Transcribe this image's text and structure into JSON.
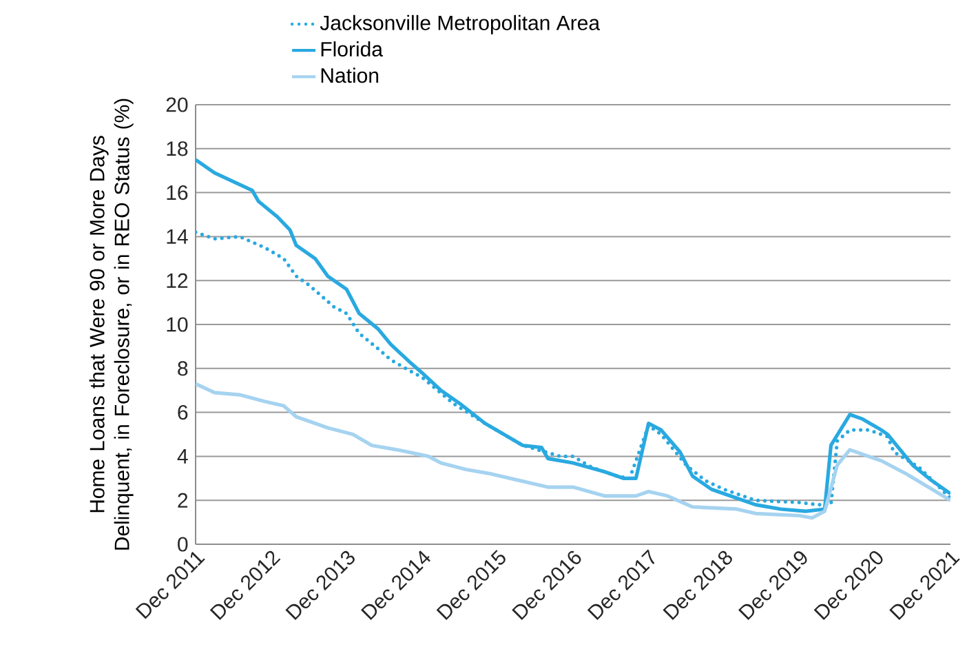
{
  "chart_data": {
    "type": "line",
    "ylabel": "Home Loans that Were 90 or More Days Delinquent, in Foreclosure, or in REO Status (%)",
    "series": [
      {
        "name": "Jacksonville Metropolitan Area",
        "color": "#29a9e0",
        "line_style": "dotted",
        "x": [
          "2011-12",
          "2012-03",
          "2012-07",
          "2012-11",
          "2013-02",
          "2013-04",
          "2013-06",
          "2013-10",
          "2013-12",
          "2014-02",
          "2014-05",
          "2014-07",
          "2014-10",
          "2014-12",
          "2015-05",
          "2015-10",
          "2016-04",
          "2016-10",
          "2016-12",
          "2017-03",
          "2017-07",
          "2017-09",
          "2017-12",
          "2018-02",
          "2018-06",
          "2018-09",
          "2018-12",
          "2019-05",
          "2019-12",
          "2020-03",
          "2020-05",
          "2020-06",
          "2020-08",
          "2020-11",
          "2021-02",
          "2021-03",
          "2021-07",
          "2021-12"
        ],
        "values": [
          14.2,
          13.9,
          14.0,
          13.5,
          13.0,
          12.2,
          11.8,
          10.8,
          10.5,
          9.6,
          8.9,
          8.4,
          7.9,
          7.6,
          6.4,
          5.5,
          4.5,
          4.0,
          4.0,
          3.5,
          3.1,
          3.0,
          5.4,
          5.0,
          3.6,
          2.9,
          2.5,
          2.0,
          1.9,
          1.8,
          1.8,
          4.7,
          5.2,
          5.2,
          4.9,
          4.2,
          3.5,
          2.1
        ]
      },
      {
        "name": "Florida",
        "color": "#29a9e0",
        "line_style": "solid",
        "x": [
          "2011-12",
          "2012-03",
          "2012-06",
          "2012-09",
          "2012-10",
          "2013-01",
          "2013-03",
          "2013-04",
          "2013-07",
          "2013-09",
          "2013-12",
          "2014-02",
          "2014-05",
          "2014-07",
          "2014-10",
          "2014-12",
          "2015-03",
          "2015-06",
          "2015-10",
          "2016-01",
          "2016-04",
          "2016-07",
          "2016-08",
          "2016-12",
          "2017-05",
          "2017-08",
          "2017-10",
          "2017-12",
          "2018-02",
          "2018-05",
          "2018-07",
          "2018-10",
          "2019-02",
          "2019-05",
          "2019-09",
          "2020-01",
          "2020-04",
          "2020-05",
          "2020-08",
          "2020-10",
          "2021-01",
          "2021-02",
          "2021-06",
          "2021-09",
          "2021-12"
        ],
        "values": [
          17.5,
          16.9,
          16.5,
          16.1,
          15.6,
          14.9,
          14.3,
          13.6,
          13.0,
          12.2,
          11.6,
          10.5,
          9.8,
          9.1,
          8.3,
          7.8,
          7.0,
          6.4,
          5.5,
          5.0,
          4.5,
          4.4,
          3.9,
          3.7,
          3.3,
          3.0,
          3.0,
          5.5,
          5.2,
          4.2,
          3.1,
          2.5,
          2.1,
          1.8,
          1.6,
          1.5,
          1.6,
          4.5,
          5.9,
          5.7,
          5.2,
          5.0,
          3.6,
          2.9,
          2.3
        ]
      },
      {
        "name": "Nation",
        "color": "#a5d3f0",
        "line_style": "solid",
        "x": [
          "2011-12",
          "2012-03",
          "2012-07",
          "2012-11",
          "2013-02",
          "2013-04",
          "2013-07",
          "2013-09",
          "2014-01",
          "2014-04",
          "2014-08",
          "2015-01",
          "2015-03",
          "2015-07",
          "2015-11",
          "2016-05",
          "2016-08",
          "2016-12",
          "2017-05",
          "2017-10",
          "2017-12",
          "2018-03",
          "2018-07",
          "2019-02",
          "2019-05",
          "2019-12",
          "2020-02",
          "2020-04",
          "2020-06",
          "2020-08",
          "2021-01",
          "2021-05",
          "2021-12"
        ],
        "values": [
          7.3,
          6.9,
          6.8,
          6.5,
          6.3,
          5.8,
          5.5,
          5.3,
          5.0,
          4.5,
          4.3,
          4.0,
          3.7,
          3.4,
          3.2,
          2.8,
          2.6,
          2.6,
          2.2,
          2.2,
          2.4,
          2.2,
          1.7,
          1.6,
          1.4,
          1.3,
          1.2,
          1.5,
          3.6,
          4.3,
          3.8,
          3.2,
          2.0
        ]
      }
    ],
    "xlim": [
      "2011-12",
      "2021-12"
    ],
    "xticks": [
      {
        "value": "2011-12",
        "label": "Dec 2011"
      },
      {
        "value": "2012-12",
        "label": "Dec 2012"
      },
      {
        "value": "2013-12",
        "label": "Dec 2013"
      },
      {
        "value": "2014-12",
        "label": "Dec 2014"
      },
      {
        "value": "2015-12",
        "label": "Dec 2015"
      },
      {
        "value": "2016-12",
        "label": "Dec 2016"
      },
      {
        "value": "2017-12",
        "label": "Dec 2017"
      },
      {
        "value": "2018-12",
        "label": "Dec 2018"
      },
      {
        "value": "2019-12",
        "label": "Dec 2019"
      },
      {
        "value": "2020-12",
        "label": "Dec 2020"
      },
      {
        "value": "2021-12",
        "label": "Dec 2021"
      }
    ],
    "ylim": [
      0,
      20
    ],
    "yticks": [
      0,
      2,
      4,
      6,
      8,
      10,
      12,
      14,
      16,
      18,
      20
    ],
    "grid": "y",
    "legend": "top",
    "marker": "none"
  }
}
